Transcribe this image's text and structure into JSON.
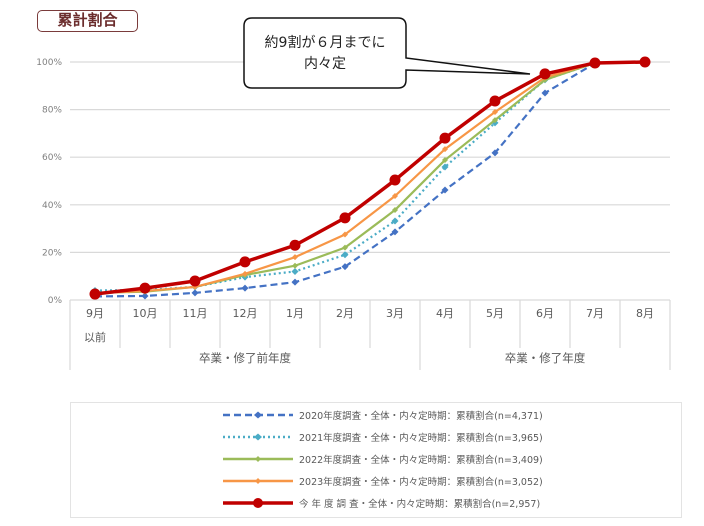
{
  "badge": {
    "label": "累計割合"
  },
  "callout": {
    "line1": "約9割が６月までに",
    "line2": "内々定"
  },
  "colors": {
    "s2020": "#4472c4",
    "s2021": "#4bacc6",
    "s2022": "#9bbb59",
    "s2023": "#f79646",
    "current": "#c00000",
    "grid": "#d9d9d9"
  },
  "axis": {
    "y_ticks": [
      "0%",
      "20%",
      "40%",
      "60%",
      "80%",
      "100%"
    ],
    "categories": [
      "9月",
      "10月",
      "11月",
      "12月",
      "1月",
      "2月",
      "3月",
      "4月",
      "5月",
      "6月",
      "7月",
      "8月"
    ],
    "first_cat_sub": "以前",
    "groups": [
      "卒業・修了前年度",
      "卒業・修了年度"
    ]
  },
  "legend": [
    {
      "label": "2020年度調査・全体・内々定時期：累積割合(n=4,371)"
    },
    {
      "label": "2021年度調査・全体・内々定時期：累積割合(n=3,965)"
    },
    {
      "label": "2022年度調査・全体・内々定時期：累積割合(n=3,409)"
    },
    {
      "label": "2023年度調査・全体・内々定時期：累積割合(n=3,052)"
    },
    {
      "label": "今 年 度 調 査・全体・内々定時期：累積割合(n=2,957)"
    }
  ],
  "chart_data": {
    "type": "line",
    "title": "累計割合",
    "xlabel": "",
    "ylabel": "",
    "ylim": [
      0,
      100
    ],
    "y_unit": "%",
    "grid": true,
    "legend_position": "bottom",
    "categories": [
      "9月以前",
      "10月",
      "11月",
      "12月",
      "1月",
      "2月",
      "3月",
      "4月",
      "5月",
      "6月",
      "7月",
      "8月"
    ],
    "category_groups": [
      {
        "label": "卒業・修了前年度",
        "range": [
          "9月以前",
          "3月"
        ]
      },
      {
        "label": "卒業・修了年度",
        "range": [
          "4月",
          "8月"
        ]
      }
    ],
    "series": [
      {
        "name": "2020年度調査・全体・内々定時期：累積割合(n=4,371)",
        "style": "dashed",
        "values": [
          1.5,
          1.7,
          3.0,
          5.0,
          7.5,
          14.0,
          28.6,
          46.2,
          61.8,
          87.0,
          99.5,
          null
        ]
      },
      {
        "name": "2021年度調査・全体・内々定時期：累積割合(n=3,965)",
        "style": "dotted",
        "values": [
          4.0,
          4.2,
          5.5,
          9.6,
          12.0,
          19.0,
          33.2,
          55.9,
          74.4,
          92.5,
          99.6,
          null
        ]
      },
      {
        "name": "2022年度調査・全体・内々定時期：累積割合(n=3,409)",
        "style": "solid",
        "values": [
          3.0,
          3.5,
          5.5,
          10.5,
          14.4,
          22.0,
          37.8,
          58.8,
          75.6,
          92.5,
          99.6,
          null
        ]
      },
      {
        "name": "2023年度調査・全体・内々定時期：累積割合(n=3,052)",
        "style": "solid",
        "values": [
          2.8,
          3.8,
          5.5,
          11.0,
          18.0,
          27.5,
          43.7,
          63.4,
          79.0,
          93.5,
          99.6,
          null
        ]
      },
      {
        "name": "今年度調査・全体・内々定時期：累積割合(n=2,957)",
        "style": "solid-thick",
        "values": [
          2.5,
          5.0,
          8.0,
          16.0,
          23.0,
          34.5,
          50.4,
          68.0,
          83.6,
          95.0,
          99.6,
          100.0
        ]
      }
    ],
    "annotations": [
      {
        "text": "約9割が６月までに内々定",
        "points_to": "6月"
      }
    ]
  }
}
